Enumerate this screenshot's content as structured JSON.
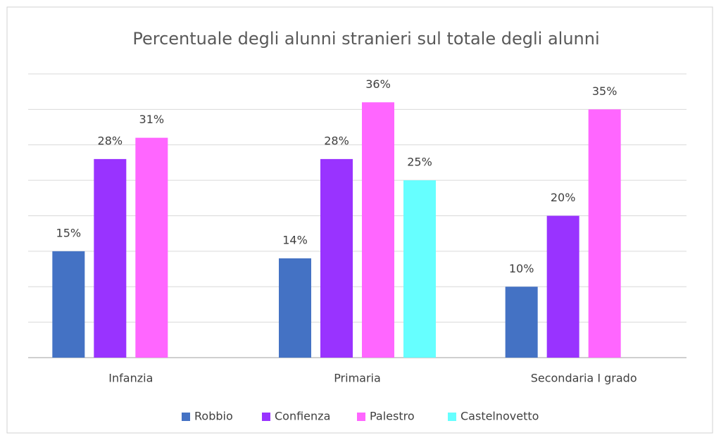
{
  "chart_data": {
    "type": "bar",
    "title": "Percentuale degli alunni stranieri sul totale degli alunni",
    "categories": [
      "Infanzia",
      "Primaria",
      "Secondaria I grado"
    ],
    "series": [
      {
        "name": "Robbio",
        "color": "#4472c4",
        "values": [
          15,
          14,
          10
        ],
        "value_labels": [
          "15%",
          "14%",
          "10%"
        ]
      },
      {
        "name": "Confienza",
        "color": "#9933ff",
        "values": [
          28,
          28,
          20
        ],
        "value_labels": [
          "28%",
          "28%",
          "20%"
        ]
      },
      {
        "name": "Palestro",
        "color": "#ff66ff",
        "values": [
          31,
          36,
          35
        ],
        "value_labels": [
          "31%",
          "36%",
          "35%"
        ]
      },
      {
        "name": "Castelnovetto",
        "color": "#66ffff",
        "values": [
          null,
          25,
          null
        ],
        "value_labels": [
          null,
          "25%",
          null
        ]
      }
    ],
    "ylim": [
      0,
      40
    ],
    "yticks": [
      0,
      5,
      10,
      15,
      20,
      25,
      30,
      35,
      40
    ],
    "grid": true,
    "legend": "bottom"
  }
}
